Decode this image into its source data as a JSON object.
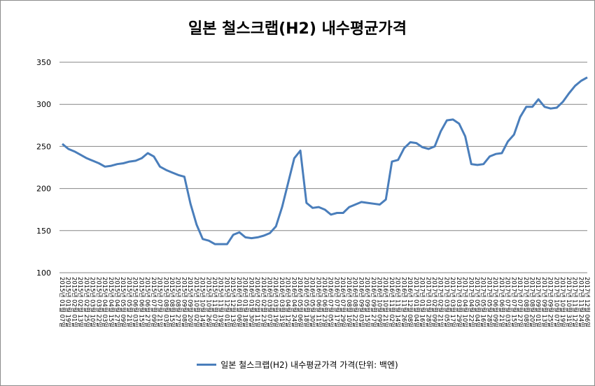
{
  "chart_data": {
    "type": "line",
    "title": "일본 철스크랩(H2) 내수평균가격",
    "xlabel": "",
    "ylabel": "",
    "ylim": [
      100,
      350
    ],
    "yticks": [
      100,
      150,
      200,
      250,
      300,
      350
    ],
    "grid": true,
    "legend_position": "bottom",
    "series_color": "#4a7ebb",
    "x": [
      "2015년 01월 07일",
      "2015년 01월 19일",
      "2015년 02월 01일",
      "2015년 02월 13일",
      "2015년 02월 25일",
      "2015년 03월 10일",
      "2015년 03월 22일",
      "2015년 04월 03일",
      "2015년 04월 15일",
      "2015년 04월 27일",
      "2015년 05월 09일",
      "2015년 05월 21일",
      "2015년 06월 03일",
      "2015년 06월 15일",
      "2015년 06월 27일",
      "2015년 07월 09일",
      "2015년 07월 21일",
      "2015년 08월 03일",
      "2015년 08월 15일",
      "2015년 08월 27일",
      "2015년 09월 08일",
      "2015년 09월 20일",
      "2015년 10월 02일",
      "2015년 10월 14일",
      "2015년 10월 26일",
      "2015년 11월 07일",
      "2015년 11월 19일",
      "2015년 12월 01일",
      "2015년 12월 13일",
      "2016년 01월 06일",
      "2016년 01월 18일",
      "2016년 01월 30일",
      "2016년 02월 11일",
      "2016년 02월 23일",
      "2016년 03월 07일",
      "2016년 03월 19일",
      "2016년 03월 31일",
      "2016년 04월 12일",
      "2016년 04월 24일",
      "2016년 05월 06일",
      "2016년 05월 18일",
      "2016년 05월 30일",
      "2016년 06월 11일",
      "2016년 06월 23일",
      "2016년 07월 05일",
      "2016년 07월 17일",
      "2016년 07월 29일",
      "2016년 08월 10일",
      "2016년 08월 22일",
      "2016년 09월 03일",
      "2016년 09월 15일",
      "2016년 09월 27일",
      "2016년 10월 09일",
      "2016년 10월 21일",
      "2016년 11월 02일",
      "2016년 11월 14일",
      "2016년 11월 26일",
      "2016년 12월 08일",
      "2017년 01월 04일",
      "2017년 01월 16일",
      "2017년 01월 28일",
      "2017년 02월 09일",
      "2017년 02월 21일",
      "2017년 03월 05일",
      "2017년 03월 17일",
      "2017년 03월 29일",
      "2017년 04월 10일",
      "2017년 04월 22일",
      "2017년 05월 04일",
      "2017년 05월 16일",
      "2017년 05월 28일",
      "2017년 06월 09일",
      "2017년 06월 21일",
      "2017년 07월 03일",
      "2017년 07월 15일",
      "2017년 07월 27일",
      "2017년 08월 08일",
      "2017년 08월 20일",
      "2017년 09월 01일",
      "2017년 09월 13일",
      "2017년 09월 25일",
      "2017년 10월 07일",
      "2017년 10월 19일",
      "2017년 10월 31일",
      "2017년 11월 12일",
      "2017년 11월 24일",
      "2017년 12월 06일"
    ],
    "series": [
      {
        "name": "일본 철스크랩(H2) 내수평균가격 가격(단위: 백엔)",
        "values": [
          253,
          247,
          244,
          240,
          236,
          233,
          230,
          226,
          227,
          229,
          230,
          232,
          233,
          236,
          242,
          238,
          226,
          222,
          219,
          216,
          214,
          182,
          157,
          140,
          138,
          134,
          134,
          134,
          145,
          148,
          142,
          141,
          142,
          144,
          147,
          155,
          178,
          207,
          236,
          245,
          183,
          177,
          178,
          175,
          169,
          171,
          171,
          178,
          181,
          184,
          183,
          182,
          181,
          187,
          232,
          234,
          248,
          255,
          254,
          249,
          247,
          250,
          268,
          281,
          282,
          277,
          262,
          229,
          228,
          229,
          238,
          241,
          242,
          256,
          264,
          285,
          297,
          297,
          306,
          297,
          295,
          296,
          303,
          313,
          322,
          328,
          332
        ]
      }
    ]
  }
}
